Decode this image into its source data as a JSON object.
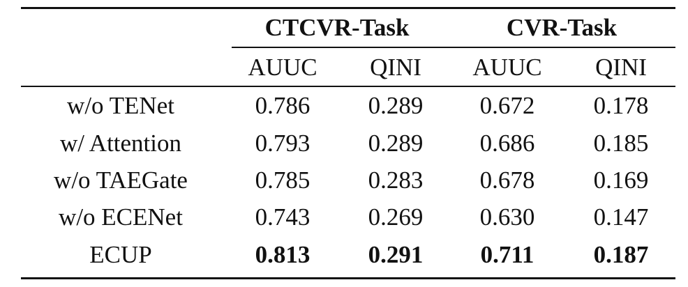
{
  "table": {
    "groups": [
      "CTCVR-Task",
      "CVR-Task"
    ],
    "columns": [
      "AUUC",
      "QINI",
      "AUUC",
      "QINI"
    ],
    "rows": [
      [
        "w/o TENet",
        "0.786",
        "0.289",
        "0.672",
        "0.178"
      ],
      [
        "w/ Attention",
        "0.793",
        "0.289",
        "0.686",
        "0.185"
      ],
      [
        "w/o TAEGate",
        "0.785",
        "0.283",
        "0.678",
        "0.169"
      ],
      [
        "w/o ECENet",
        "0.743",
        "0.269",
        "0.630",
        "0.147"
      ],
      [
        "ECUP",
        "0.813",
        "0.291",
        "0.711",
        "0.187"
      ]
    ]
  }
}
